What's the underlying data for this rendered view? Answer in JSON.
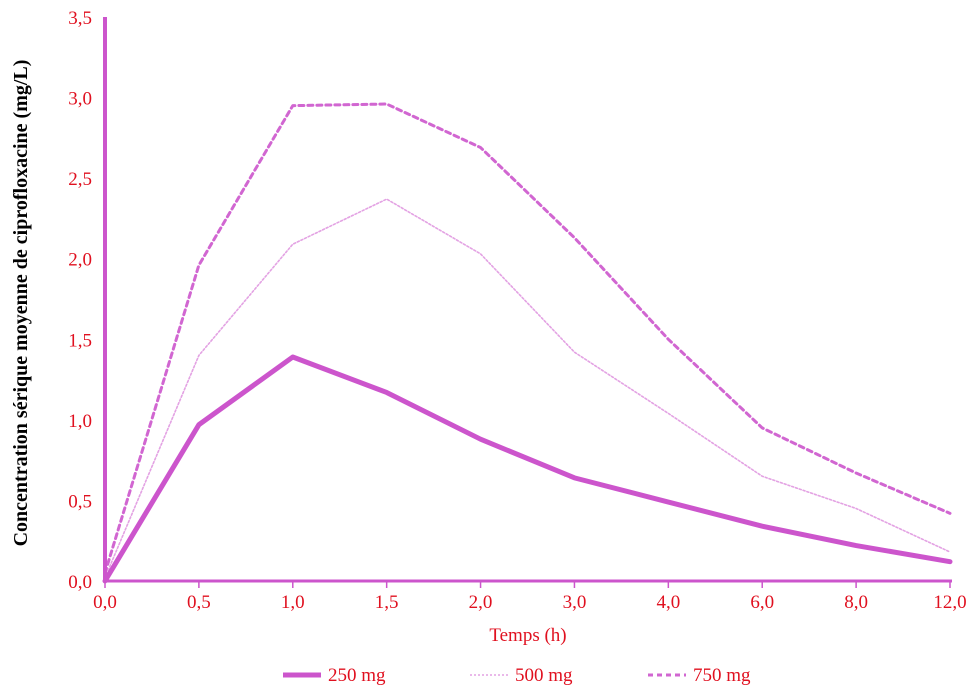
{
  "colors": {
    "series": "#cc55cc",
    "axis": "#cc55cc",
    "text": "#e0101f",
    "ylabel": "#000000"
  },
  "chart_data": {
    "type": "line",
    "x": [
      "0,0",
      "0,5",
      "1,0",
      "1,5",
      "2,0",
      "3,0",
      "4,0",
      "6,0",
      "8,0",
      "12,0"
    ],
    "xlabel": "Temps (h)",
    "ylabel": "Concentration sérique moyenne de ciprofloxacine (mg/L)",
    "ylim": [
      0,
      3.5
    ],
    "yticks": [
      "0,0",
      "0,5",
      "1,0",
      "1,5",
      "2,0",
      "2,5",
      "3,0",
      "3,5"
    ],
    "grid": false,
    "legend_position": "bottom",
    "series": [
      {
        "name": "250 mg",
        "style": "solid",
        "values": [
          0.0,
          0.97,
          1.39,
          1.17,
          0.88,
          0.64,
          0.49,
          0.34,
          0.22,
          0.12
        ]
      },
      {
        "name": "500 mg",
        "style": "dotted",
        "values": [
          0.02,
          1.4,
          2.09,
          2.37,
          2.03,
          1.42,
          1.04,
          0.65,
          0.45,
          0.18
        ]
      },
      {
        "name": "750 mg",
        "style": "dashed",
        "values": [
          0.05,
          1.96,
          2.95,
          2.96,
          2.69,
          2.13,
          1.5,
          0.95,
          0.67,
          0.42
        ]
      }
    ]
  }
}
